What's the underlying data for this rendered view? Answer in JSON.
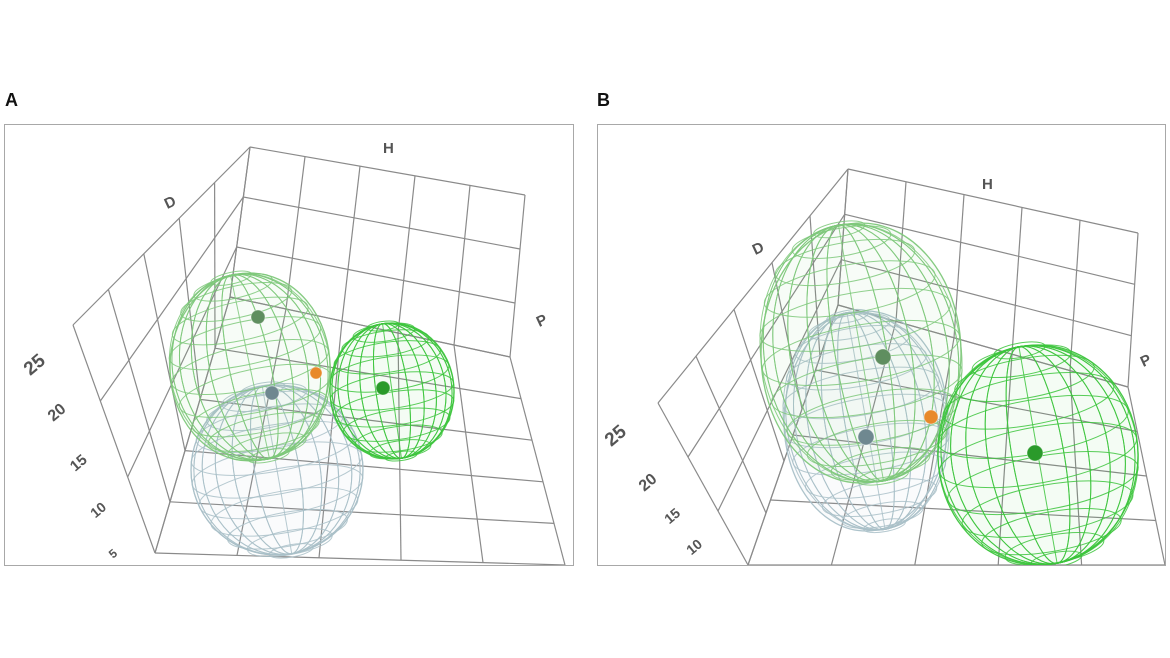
{
  "panels": [
    {
      "letter": "A",
      "axis_labels": {
        "h": "H",
        "d": "D",
        "p": "P"
      }
    },
    {
      "letter": "B",
      "axis_labels": {
        "h": "H",
        "d": "D",
        "p": "P"
      }
    }
  ],
  "colors": {
    "grid": "#8a8a8a",
    "sphere_light_green": "#7ec87a",
    "sphere_blue_gray": "#a9c0c8",
    "sphere_green": "#3cc43c",
    "center_light_green": "#5f8e5f",
    "center_blue_gray": "#6f8890",
    "center_green": "#2a9a2a",
    "marker_orange": "#e8892b",
    "tick_text": "#555555"
  },
  "chart_data": [
    {
      "type": "scatter",
      "axes": [
        "H",
        "D",
        "P"
      ],
      "vertical_axis_ticks": [
        "25",
        "20",
        "15",
        "10",
        "5"
      ],
      "grid": true,
      "spheres": [
        {
          "color": "light-green"
        },
        {
          "color": "blue-gray"
        },
        {
          "color": "green"
        }
      ],
      "markers": [
        {
          "color": "orange"
        }
      ]
    },
    {
      "type": "scatter",
      "axes": [
        "H",
        "D",
        "P"
      ],
      "vertical_axis_ticks": [
        "25",
        "20",
        "15",
        "10"
      ],
      "grid": true,
      "spheres": [
        {
          "color": "light-green"
        },
        {
          "color": "blue-gray"
        },
        {
          "color": "green"
        }
      ],
      "markers": [
        {
          "color": "orange"
        }
      ]
    }
  ]
}
